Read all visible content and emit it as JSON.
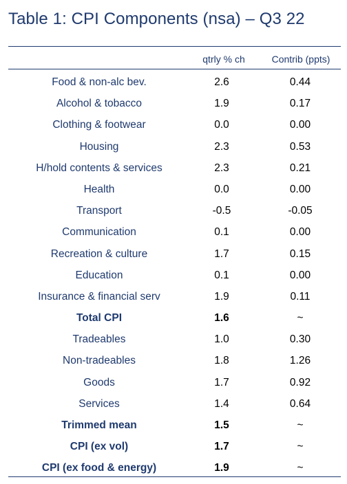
{
  "title": "Table 1: CPI Components (nsa) – Q3 22",
  "columns": {
    "qtrly": "qtrly % ch",
    "contrib": "Contrib (ppts)"
  },
  "rows": [
    {
      "label": "Food & non-alc bev.",
      "qtrly": "2.6",
      "contrib": "0.44",
      "bold": false
    },
    {
      "label": "Alcohol & tobacco",
      "qtrly": "1.9",
      "contrib": "0.17",
      "bold": false
    },
    {
      "label": "Clothing & footwear",
      "qtrly": "0.0",
      "contrib": "0.00",
      "bold": false
    },
    {
      "label": "Housing",
      "qtrly": "2.3",
      "contrib": "0.53",
      "bold": false
    },
    {
      "label": "H/hold contents & services",
      "qtrly": "2.3",
      "contrib": "0.21",
      "bold": false
    },
    {
      "label": "Health",
      "qtrly": "0.0",
      "contrib": "0.00",
      "bold": false
    },
    {
      "label": "Transport",
      "qtrly": "-0.5",
      "contrib": "-0.05",
      "bold": false
    },
    {
      "label": "Communication",
      "qtrly": "0.1",
      "contrib": "0.00",
      "bold": false
    },
    {
      "label": "Recreation & culture",
      "qtrly": "1.7",
      "contrib": "0.15",
      "bold": false
    },
    {
      "label": "Education",
      "qtrly": "0.1",
      "contrib": "0.00",
      "bold": false
    },
    {
      "label": "Insurance & financial serv",
      "qtrly": "1.9",
      "contrib": "0.11",
      "bold": false
    },
    {
      "label": "Total CPI",
      "qtrly": "1.6",
      "contrib": "~",
      "bold": true
    },
    {
      "label": "Tradeables",
      "qtrly": "1.0",
      "contrib": "0.30",
      "bold": false
    },
    {
      "label": "Non-tradeables",
      "qtrly": "1.8",
      "contrib": "1.26",
      "bold": false
    },
    {
      "label": "Goods",
      "qtrly": "1.7",
      "contrib": "0.92",
      "bold": false
    },
    {
      "label": "Services",
      "qtrly": "1.4",
      "contrib": "0.64",
      "bold": false
    },
    {
      "label": "Trimmed mean",
      "qtrly": "1.5",
      "contrib": "~",
      "bold": true
    },
    {
      "label": "CPI (ex vol)",
      "qtrly": "1.7",
      "contrib": "~",
      "bold": true
    },
    {
      "label": "CPI (ex food & energy)",
      "qtrly": "1.9",
      "contrib": "~",
      "bold": true
    }
  ]
}
